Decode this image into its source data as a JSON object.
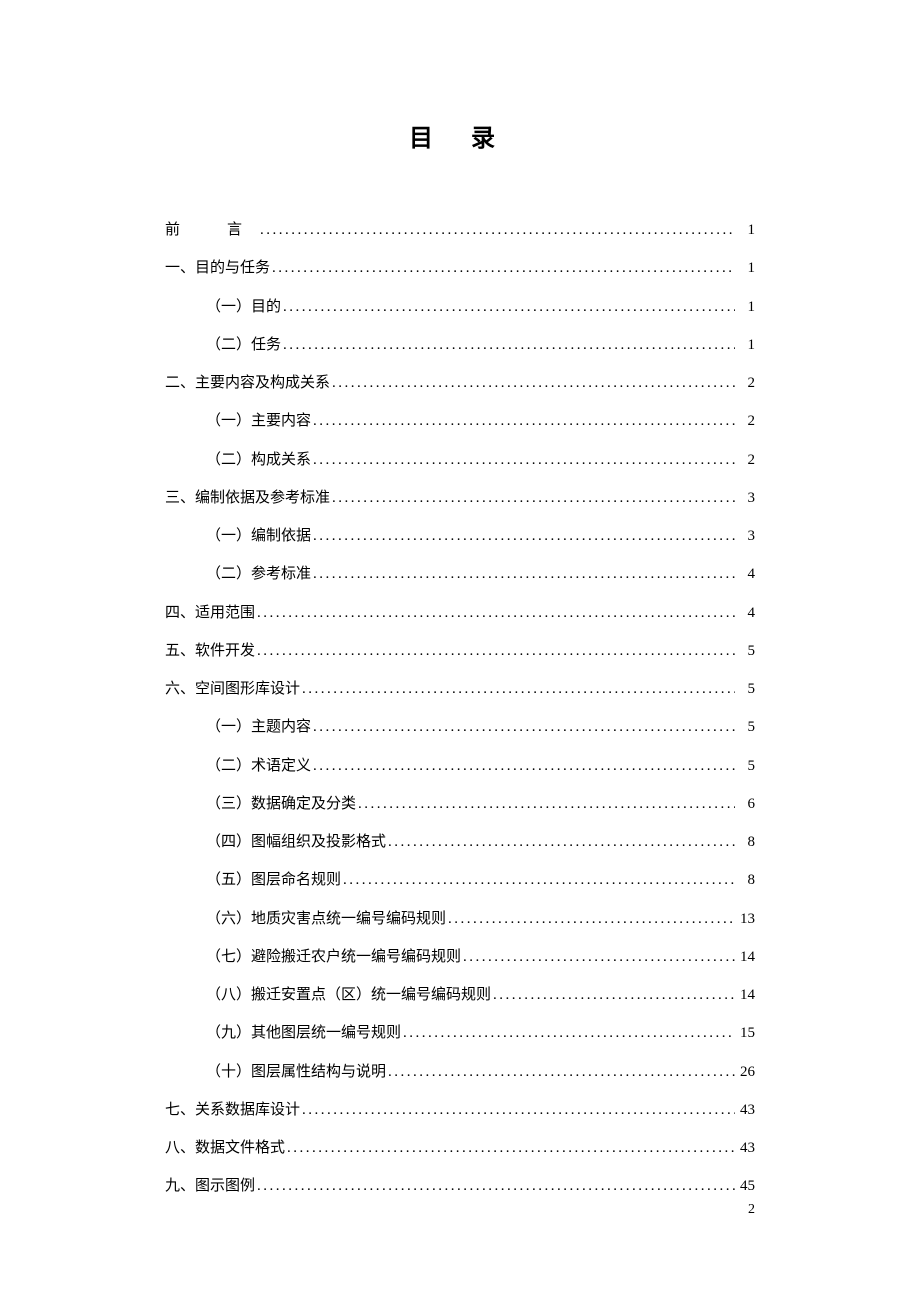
{
  "title": "目 录",
  "page_number": "2",
  "colors": {
    "background": "#ffffff",
    "text": "#000000"
  },
  "typography": {
    "title_fontsize": 24,
    "body_fontsize": 15,
    "line_height": 2.55,
    "font_family": "SimSun"
  },
  "toc": [
    {
      "level": 0,
      "label": "前　言",
      "page": "1",
      "spaced": true
    },
    {
      "level": 0,
      "label": "一、目的与任务",
      "page": "1"
    },
    {
      "level": 1,
      "label": "（一）目的",
      "page": "1"
    },
    {
      "level": 1,
      "label": "（二）任务",
      "page": "1"
    },
    {
      "level": 0,
      "label": "二、主要内容及构成关系",
      "page": "2"
    },
    {
      "level": 1,
      "label": "（一）主要内容",
      "page": "2"
    },
    {
      "level": 1,
      "label": "（二）构成关系",
      "page": "2"
    },
    {
      "level": 0,
      "label": "三、编制依据及参考标准",
      "page": "3"
    },
    {
      "level": 1,
      "label": "（一）编制依据",
      "page": "3"
    },
    {
      "level": 1,
      "label": "（二）参考标准",
      "page": "4"
    },
    {
      "level": 0,
      "label": "四、适用范围",
      "page": "4"
    },
    {
      "level": 0,
      "label": "五、软件开发",
      "page": "5"
    },
    {
      "level": 0,
      "label": "六、空间图形库设计",
      "page": "5"
    },
    {
      "level": 1,
      "label": "（一）主题内容",
      "page": "5"
    },
    {
      "level": 1,
      "label": "（二）术语定义",
      "page": "5"
    },
    {
      "level": 1,
      "label": "（三）数据确定及分类",
      "page": "6"
    },
    {
      "level": 1,
      "label": "（四）图幅组织及投影格式",
      "page": "8"
    },
    {
      "level": 1,
      "label": "（五）图层命名规则",
      "page": "8"
    },
    {
      "level": 1,
      "label": "（六）地质灾害点统一编号编码规则",
      "page": "13"
    },
    {
      "level": 1,
      "label": "（七）避险搬迁农户统一编号编码规则",
      "page": "14"
    },
    {
      "level": 1,
      "label": "（八）搬迁安置点（区）统一编号编码规则",
      "page": "14"
    },
    {
      "level": 1,
      "label": "（九）其他图层统一编号规则",
      "page": "15"
    },
    {
      "level": 1,
      "label": "（十）图层属性结构与说明",
      "page": "26"
    },
    {
      "level": 0,
      "label": "七、关系数据库设计",
      "page": "43"
    },
    {
      "level": 0,
      "label": "八、数据文件格式",
      "page": "43"
    },
    {
      "level": 0,
      "label": "九、图示图例",
      "page": "45"
    }
  ]
}
